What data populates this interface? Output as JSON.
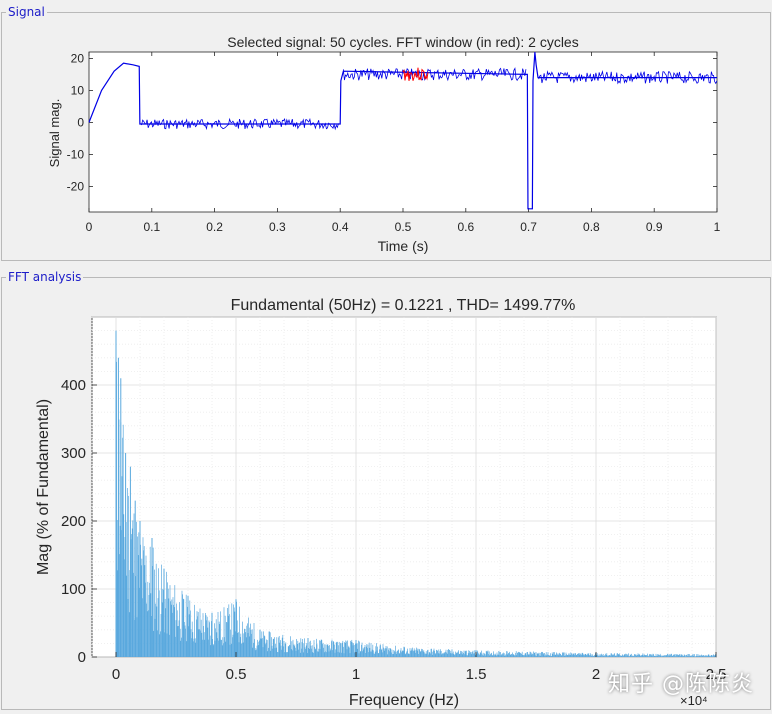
{
  "panels": {
    "signal_title": "Signal",
    "fft_title": "FFT analysis"
  },
  "watermark": "知乎 @陈陈炎",
  "colors": {
    "signal_line": "#0000e6",
    "fft_window": "#ff0000",
    "fft_bars": "#5aa9de"
  },
  "chart_data": [
    {
      "type": "line",
      "title": "Selected signal: 50 cycles. FFT window (in red): 2 cycles",
      "xlabel": "Time (s)",
      "ylabel": "Signal mag.",
      "xlim": [
        0,
        1
      ],
      "ylim": [
        -28,
        22
      ],
      "xticks": [
        "0",
        "0.1",
        "0.2",
        "0.3",
        "0.4",
        "0.5",
        "0.6",
        "0.7",
        "0.8",
        "0.9",
        "1"
      ],
      "yticks": [
        "20",
        "10",
        "0",
        "-10",
        "-20"
      ],
      "series": [
        {
          "x": [
            0,
            0.02,
            0.04,
            0.055,
            0.07,
            0.08,
            0.081,
            0.4,
            0.401,
            0.405,
            0.698,
            0.699,
            0.706,
            0.707,
            0.71,
            0.712,
            0.715,
            1.0
          ],
          "y": [
            0,
            10,
            16,
            18.5,
            18,
            17.5,
            -0.5,
            -0.5,
            13,
            16,
            15,
            -27,
            -27,
            13,
            22,
            18,
            14,
            14
          ]
        }
      ],
      "fft_window": [
        0.5,
        0.54
      ]
    },
    {
      "type": "bar",
      "title": "Fundamental (50Hz) = 0.1221 , THD= 1499.77%",
      "xlabel": "Frequency (Hz)",
      "ylabel": "Mag (% of Fundamental)",
      "xlim": [
        -1000,
        25000
      ],
      "ylim": [
        0,
        500
      ],
      "xticks": [
        "0",
        "0.5",
        "1",
        "1.5",
        "2",
        "2.5"
      ],
      "xtick_values": [
        0,
        5000,
        10000,
        15000,
        20000,
        25000
      ],
      "x_exponent": "×10⁴",
      "yticks": [
        "0",
        "100",
        "200",
        "300",
        "400"
      ],
      "ytick_values": [
        0,
        100,
        200,
        300,
        400
      ],
      "bins": [
        {
          "freq": 0,
          "value": 480
        },
        {
          "freq": 100,
          "value": 440
        },
        {
          "freq": 200,
          "value": 410
        },
        {
          "freq": 400,
          "value": 300
        },
        {
          "freq": 600,
          "value": 280
        },
        {
          "freq": 800,
          "value": 230
        },
        {
          "freq": 1000,
          "value": 200
        },
        {
          "freq": 1500,
          "value": 175
        },
        {
          "freq": 2000,
          "value": 130
        },
        {
          "freq": 3000,
          "value": 90
        },
        {
          "freq": 4000,
          "value": 65
        },
        {
          "freq": 5000,
          "value": 85
        },
        {
          "freq": 6000,
          "value": 40
        },
        {
          "freq": 8000,
          "value": 28
        },
        {
          "freq": 10000,
          "value": 25
        },
        {
          "freq": 12000,
          "value": 15
        },
        {
          "freq": 15000,
          "value": 10
        },
        {
          "freq": 20000,
          "value": 6
        },
        {
          "freq": 25000,
          "value": 4
        }
      ]
    }
  ]
}
